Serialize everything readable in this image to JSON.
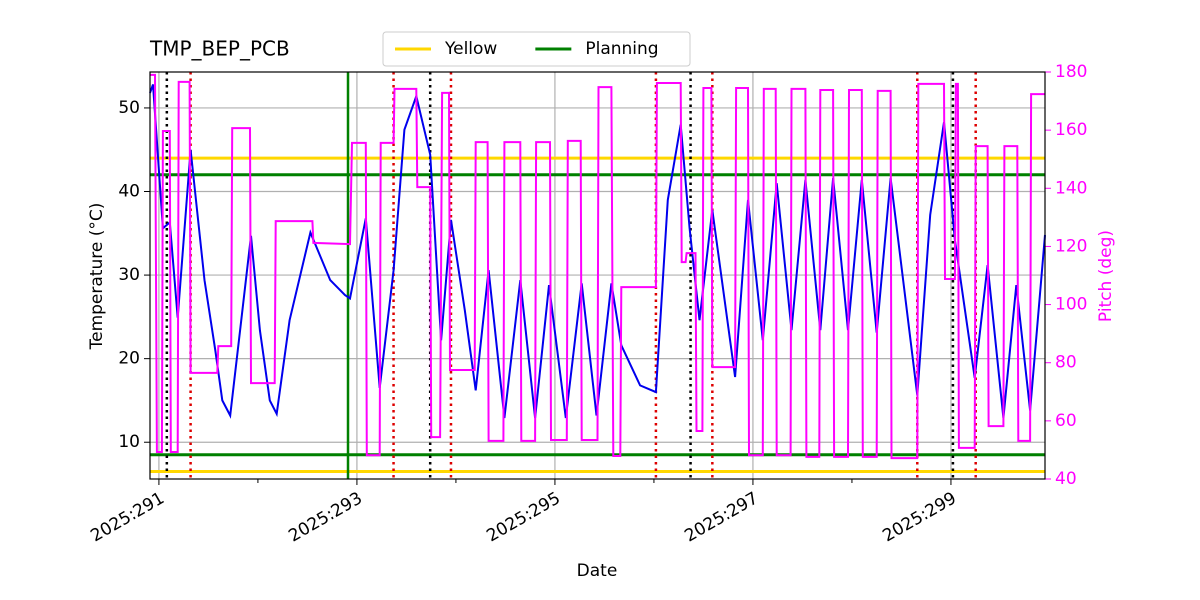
{
  "chart_data": {
    "type": "line",
    "title": "TMP_BEP_PCB",
    "xlabel": "Date",
    "ylabel": "Temperature (°C)",
    "y2label": "Pitch (deg)",
    "y2color": "#ff00ff",
    "xlim": [
      290.91,
      299.95
    ],
    "xticks": [
      {
        "value": 291,
        "label": "2025:291"
      },
      {
        "value": 293,
        "label": "2025:293"
      },
      {
        "value": 295,
        "label": "2025:295"
      },
      {
        "value": 297,
        "label": "2025:297"
      },
      {
        "value": 299,
        "label": "2025:299"
      }
    ],
    "xminorticks": [
      292,
      294,
      296,
      298
    ],
    "ylim": [
      5.6,
      54.3
    ],
    "yticks": [
      10,
      20,
      30,
      40,
      50
    ],
    "y2lim": [
      40,
      180
    ],
    "y2ticks": [
      40,
      60,
      80,
      100,
      120,
      140,
      160,
      180
    ],
    "grid": true,
    "legend": "upper center",
    "series": [
      {
        "color": "#0000ee",
        "x": [
          290.91,
          290.94,
          291.04,
          291.11,
          291.19,
          291.32,
          291.46,
          291.57,
          291.64,
          291.72,
          291.82,
          291.93,
          292.02,
          292.12,
          292.19,
          292.32,
          292.53,
          292.73,
          292.88,
          292.93,
          293.09,
          293.23,
          293.37,
          293.48,
          293.6,
          293.74,
          293.85,
          293.95,
          294.09,
          294.2,
          294.33,
          294.49,
          294.65,
          294.8,
          294.94,
          295.11,
          295.27,
          295.42,
          295.57,
          295.67,
          295.86,
          296.02,
          296.14,
          296.27,
          296.36,
          296.46,
          296.59,
          296.82,
          296.95,
          297.1,
          297.24,
          297.39,
          297.53,
          297.68,
          297.81,
          297.96,
          298.1,
          298.25,
          298.39,
          298.66,
          298.79,
          298.93,
          299.04,
          299.24,
          299.37,
          299.53,
          299.66,
          299.8,
          299.95
        ],
        "values": [
          51.8,
          52.8,
          35.6,
          36.3,
          24.9,
          45,
          29.4,
          21,
          15,
          13.2,
          23.4,
          34.7,
          23.4,
          15,
          13.4,
          24.6,
          35.1,
          29.4,
          27.6,
          27.2,
          36.8,
          16.5,
          30.6,
          47.4,
          51.4,
          44.4,
          22.2,
          36.6,
          25.8,
          16.2,
          30.6,
          12.9,
          29.4,
          12.9,
          28.8,
          12.9,
          29,
          13.2,
          29,
          21.6,
          16.8,
          16.0,
          39,
          48,
          35.6,
          24.6,
          37.8,
          17.8,
          39,
          22.2,
          41,
          23.4,
          41.4,
          23.4,
          41.6,
          23.4,
          41.4,
          23.1,
          41.6,
          15.6,
          37.2,
          48.3,
          34.2,
          17.7,
          31.2,
          12.9,
          28.8,
          13.8,
          34.8
        ]
      },
      {
        "color": "#ff00ff",
        "axis": "y2",
        "x": [
          290.91,
          290.96,
          290.98,
          291.03,
          291.04,
          291.11,
          291.12,
          291.19,
          291.2,
          291.31,
          291.32,
          291.59,
          291.6,
          291.73,
          291.74,
          291.92,
          291.93,
          292.17,
          292.18,
          292.55,
          292.56,
          292.93,
          292.95,
          293.09,
          293.1,
          293.23,
          293.24,
          293.37,
          293.38,
          293.6,
          293.61,
          293.74,
          293.75,
          293.84,
          293.86,
          293.93,
          293.94,
          294.19,
          294.2,
          294.32,
          294.33,
          294.48,
          294.49,
          294.65,
          294.66,
          294.8,
          294.81,
          294.95,
          294.96,
          295.12,
          295.13,
          295.26,
          295.27,
          295.43,
          295.44,
          295.57,
          295.59,
          295.66,
          295.67,
          296.02,
          296.03,
          296.27,
          296.28,
          296.32,
          296.33,
          296.42,
          296.43,
          296.49,
          296.5,
          296.58,
          296.59,
          296.82,
          296.83,
          296.95,
          296.96,
          297.1,
          297.11,
          297.23,
          297.24,
          297.38,
          297.39,
          297.53,
          297.54,
          297.67,
          297.68,
          297.81,
          297.82,
          297.96,
          297.97,
          298.1,
          298.11,
          298.25,
          298.26,
          298.39,
          298.4,
          298.66,
          298.67,
          298.93,
          298.94,
          299.04,
          299.05,
          299.07,
          299.08,
          299.24,
          299.25,
          299.37,
          299.38,
          299.53,
          299.54,
          299.67,
          299.68,
          299.8,
          299.81,
          299.95
        ],
        "values": [
          179,
          179,
          49.3,
          49.3,
          159.7,
          159.7,
          49.3,
          49.3,
          176.6,
          176.6,
          76.5,
          76.5,
          85.7,
          85.7,
          160.7,
          160.7,
          73,
          73,
          128.7,
          128.7,
          121.2,
          120.8,
          155.6,
          155.6,
          48.2,
          48.2,
          155.6,
          155.6,
          174.2,
          174.2,
          140.4,
          140.4,
          54.4,
          54.4,
          172.8,
          172.8,
          77.5,
          77.5,
          155.9,
          155.9,
          53.1,
          53.1,
          155.9,
          155.9,
          53.1,
          53.1,
          155.9,
          155.9,
          53.4,
          53.4,
          156.3,
          156.3,
          53.4,
          53.4,
          174.8,
          174.8,
          47.9,
          47.9,
          106,
          106,
          176.2,
          176.2,
          114.6,
          114.6,
          117.7,
          117.7,
          56.5,
          56.5,
          174.5,
          174.5,
          78.5,
          78.5,
          174.5,
          174.5,
          48.2,
          48.2,
          174.2,
          174.2,
          48.2,
          48.2,
          174.2,
          174.2,
          47.6,
          47.6,
          173.8,
          173.8,
          47.6,
          47.6,
          173.8,
          173.8,
          47.6,
          47.6,
          173.5,
          173.5,
          47.2,
          47.2,
          175.9,
          175.9,
          108.8,
          108.8,
          175.9,
          175.9,
          50.7,
          50.7,
          154.5,
          154.5,
          58.2,
          58.2,
          154.5,
          154.5,
          53.1,
          53.1,
          172.4,
          172.4
        ]
      }
    ],
    "limit_lines": [
      {
        "name": "Yellow",
        "color": "#ffd700",
        "values": [
          44,
          6.5
        ]
      },
      {
        "name": "Planning",
        "color": "#008000",
        "values": [
          42,
          8.5
        ],
        "x": [
          292.91
        ]
      }
    ],
    "vlines": [
      {
        "color": "#000000",
        "x": [
          291.08,
          293.74,
          296.37,
          299.02
        ]
      },
      {
        "color": "#dd0000",
        "x": [
          291.32,
          293.37,
          293.95,
          296.02,
          296.59,
          298.66,
          299.25
        ]
      }
    ]
  }
}
